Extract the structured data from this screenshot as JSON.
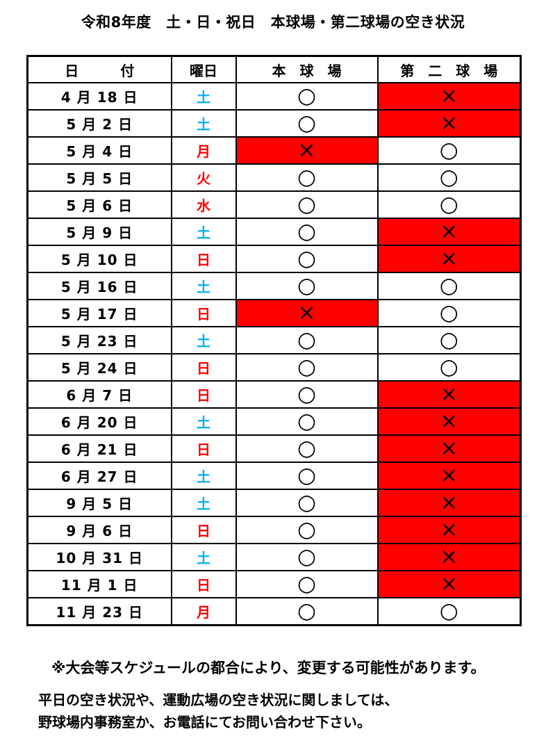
{
  "page": {
    "title": "令和8年度　土・日・祝日　本球場・第二球場の空き状況"
  },
  "table": {
    "headers": {
      "date": "日　　　付",
      "day": "曜日",
      "main": "本　球　場",
      "second": "第　二　球　場"
    },
    "symbols": {
      "available": "○",
      "unavailable": "×"
    },
    "colors": {
      "saturday": "#00B0F0",
      "holiday": "#FF0000",
      "unavailable_bg": "#FF0000",
      "border": "#000000"
    },
    "rows": [
      {
        "date": "4 月 18 日",
        "day": "土",
        "day_type": "saturday",
        "main": "o",
        "second": "x"
      },
      {
        "date": "5 月 2 日",
        "day": "土",
        "day_type": "saturday",
        "main": "o",
        "second": "x"
      },
      {
        "date": "5 月 4 日",
        "day": "月",
        "day_type": "holiday",
        "main": "x",
        "second": "o"
      },
      {
        "date": "5 月 5 日",
        "day": "火",
        "day_type": "holiday",
        "main": "o",
        "second": "o"
      },
      {
        "date": "5 月 6 日",
        "day": "水",
        "day_type": "holiday",
        "main": "o",
        "second": "o"
      },
      {
        "date": "5 月 9 日",
        "day": "土",
        "day_type": "saturday",
        "main": "o",
        "second": "x"
      },
      {
        "date": "5 月 10 日",
        "day": "日",
        "day_type": "holiday",
        "main": "o",
        "second": "x"
      },
      {
        "date": "5 月 16 日",
        "day": "土",
        "day_type": "saturday",
        "main": "o",
        "second": "o"
      },
      {
        "date": "5 月 17 日",
        "day": "日",
        "day_type": "holiday",
        "main": "x",
        "second": "o"
      },
      {
        "date": "5 月 23 日",
        "day": "土",
        "day_type": "saturday",
        "main": "o",
        "second": "o"
      },
      {
        "date": "5 月 24 日",
        "day": "日",
        "day_type": "holiday",
        "main": "o",
        "second": "o"
      },
      {
        "date": "6 月 7 日",
        "day": "日",
        "day_type": "holiday",
        "main": "o",
        "second": "x"
      },
      {
        "date": "6 月 20 日",
        "day": "土",
        "day_type": "saturday",
        "main": "o",
        "second": "x"
      },
      {
        "date": "6 月 21 日",
        "day": "日",
        "day_type": "holiday",
        "main": "o",
        "second": "x"
      },
      {
        "date": "6 月 27 日",
        "day": "土",
        "day_type": "saturday",
        "main": "o",
        "second": "x"
      },
      {
        "date": "9 月 5 日",
        "day": "土",
        "day_type": "saturday",
        "main": "o",
        "second": "x"
      },
      {
        "date": "9 月 6 日",
        "day": "日",
        "day_type": "holiday",
        "main": "o",
        "second": "x"
      },
      {
        "date": "10 月 31 日",
        "day": "土",
        "day_type": "saturday",
        "main": "o",
        "second": "x"
      },
      {
        "date": "11 月 1 日",
        "day": "日",
        "day_type": "holiday",
        "main": "o",
        "second": "x"
      },
      {
        "date": "11 月 23 日",
        "day": "月",
        "day_type": "holiday",
        "main": "o",
        "second": "o"
      }
    ]
  },
  "footer": {
    "note1": "※大会等スケジュールの都合により、変更する可能性があります。",
    "note2": "平日の空き状況や、運動広場の空き状況に関しましては、",
    "note3": "野球場内事務室か、お電話にてお問い合わせ下さい。"
  }
}
